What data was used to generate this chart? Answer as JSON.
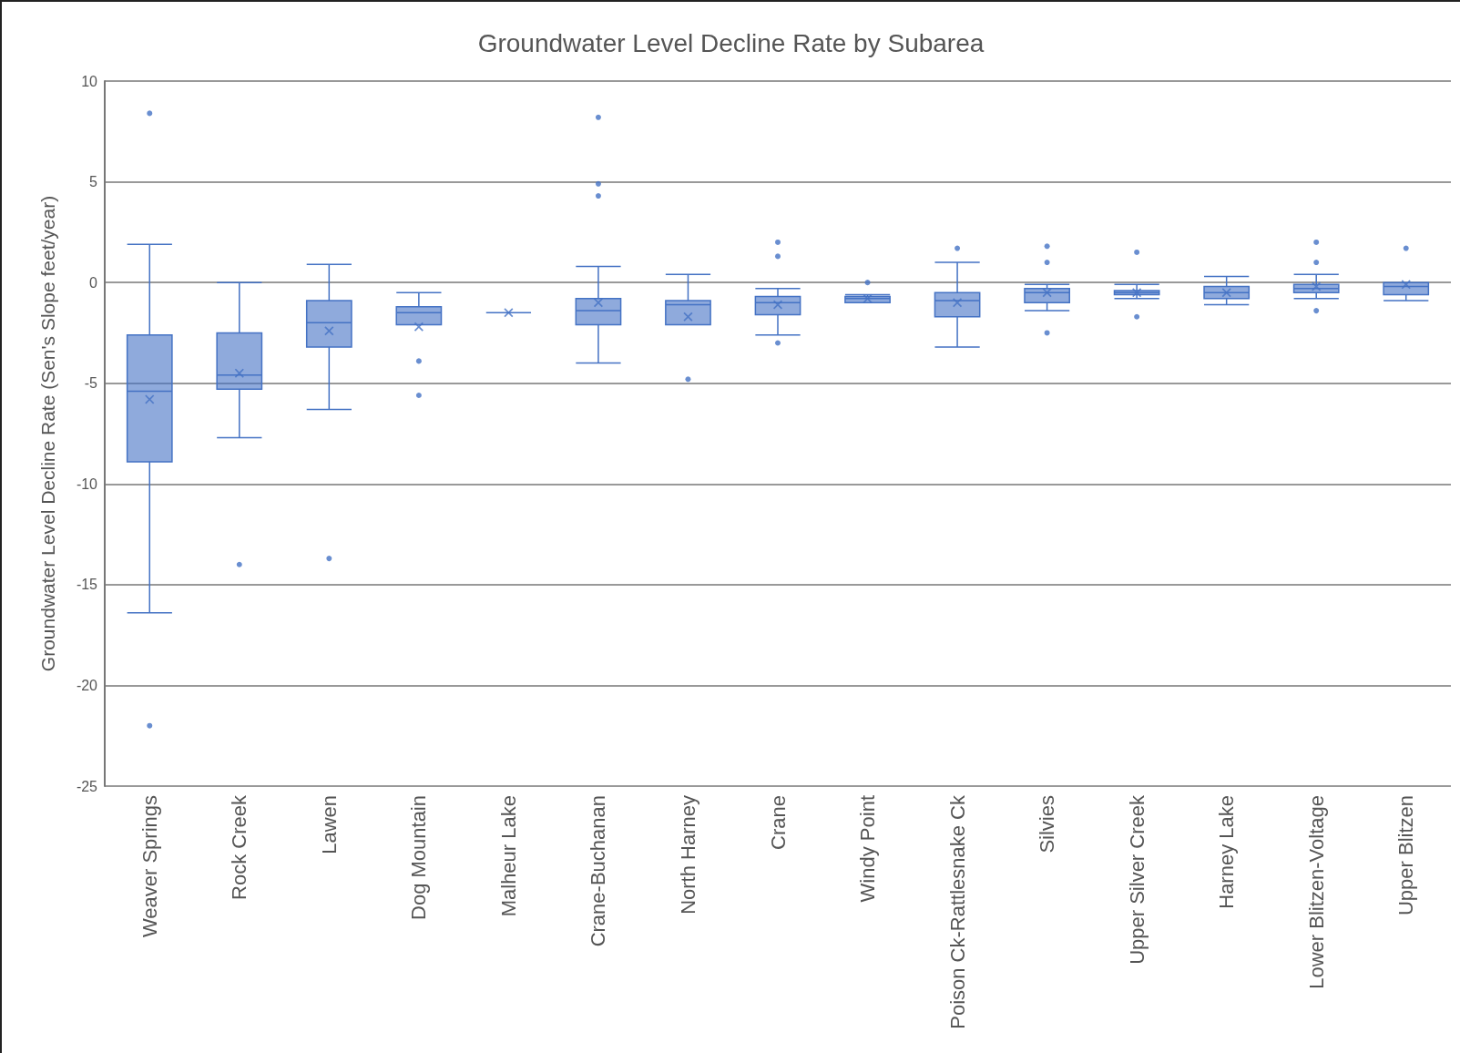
{
  "chart_data": {
    "type": "box",
    "title": "Groundwater Level Decline Rate by Subarea",
    "ylabel": "Groundwater Level Decline Rate (Sen's Slope feet/year)",
    "categories": [
      "Weaver Springs",
      "Rock Creek",
      "Lawen",
      "Dog Mountain",
      "Malheur Lake",
      "Crane-Buchanan",
      "North Harney",
      "Crane",
      "Windy Point",
      "Poison Ck-Rattlesnake Ck",
      "Silvies",
      "Upper Silver Creek",
      "Harney Lake",
      "Lower Blitzen-Voltage",
      "Upper Blitzen"
    ],
    "series": [
      {
        "color": "#4472c4",
        "boxes": [
          {
            "low": -16.4,
            "q1": -8.9,
            "median": -5.4,
            "q3": -2.6,
            "high": 1.9,
            "mean": -5.8,
            "outliers": [
              8.4,
              -22.0
            ]
          },
          {
            "low": -7.7,
            "q1": -5.3,
            "median": -4.6,
            "q3": -2.5,
            "high": 0.0,
            "mean": -4.5,
            "outliers": [
              -14.0
            ]
          },
          {
            "low": -6.3,
            "q1": -3.2,
            "median": -2.0,
            "q3": -0.9,
            "high": 0.9,
            "mean": -2.4,
            "outliers": [
              -13.7
            ]
          },
          {
            "low": -2.1,
            "q1": -2.1,
            "median": -1.5,
            "q3": -1.2,
            "high": -0.5,
            "mean": -2.2,
            "outliers": [
              -3.9,
              -5.6
            ]
          },
          {
            "low": -1.5,
            "q1": -1.5,
            "median": -1.5,
            "q3": -1.5,
            "high": -1.5,
            "mean": -1.5
          },
          {
            "low": -4.0,
            "q1": -2.1,
            "median": -1.4,
            "q3": -0.8,
            "high": 0.8,
            "mean": -1.0,
            "outliers": [
              8.2,
              4.9,
              4.3
            ]
          },
          {
            "low": -2.1,
            "q1": -2.1,
            "median": -1.1,
            "q3": -0.9,
            "high": 0.4,
            "mean": -1.7,
            "outliers": [
              -4.8
            ]
          },
          {
            "low": -2.6,
            "q1": -1.6,
            "median": -1.0,
            "q3": -0.7,
            "high": -0.3,
            "mean": -1.1,
            "outliers": [
              2.0,
              1.3,
              -3.0
            ]
          },
          {
            "low": -1.0,
            "q1": -1.0,
            "median": -0.8,
            "q3": -0.7,
            "high": -0.6,
            "mean": -0.8,
            "outliers": [
              0.0
            ]
          },
          {
            "low": -3.2,
            "q1": -1.7,
            "median": -0.9,
            "q3": -0.5,
            "high": 1.0,
            "mean": -1.0,
            "outliers": [
              1.7
            ]
          },
          {
            "low": -1.4,
            "q1": -1.0,
            "median": -0.5,
            "q3": -0.3,
            "high": -0.1,
            "mean": -0.5,
            "outliers": [
              1.8,
              1.0,
              -2.5
            ]
          },
          {
            "low": -0.8,
            "q1": -0.6,
            "median": -0.5,
            "q3": -0.4,
            "high": -0.1,
            "mean": -0.5,
            "outliers": [
              1.5,
              -1.7
            ]
          },
          {
            "low": -1.1,
            "q1": -0.8,
            "median": -0.5,
            "q3": -0.2,
            "high": 0.3,
            "mean": -0.5
          },
          {
            "low": -0.8,
            "q1": -0.5,
            "median": -0.3,
            "q3": -0.1,
            "high": 0.4,
            "mean": -0.2,
            "outliers": [
              2.0,
              1.0,
              -1.4
            ]
          },
          {
            "low": -0.9,
            "q1": -0.6,
            "median": -0.2,
            "q3": 0.0,
            "high": 0.0,
            "mean": -0.1,
            "outliers": [
              1.7
            ]
          }
        ]
      }
    ],
    "ylim": [
      -25,
      10
    ],
    "yticks": [
      -25,
      -20,
      -15,
      -10,
      -5,
      0,
      5,
      10
    ],
    "grid": "y"
  }
}
